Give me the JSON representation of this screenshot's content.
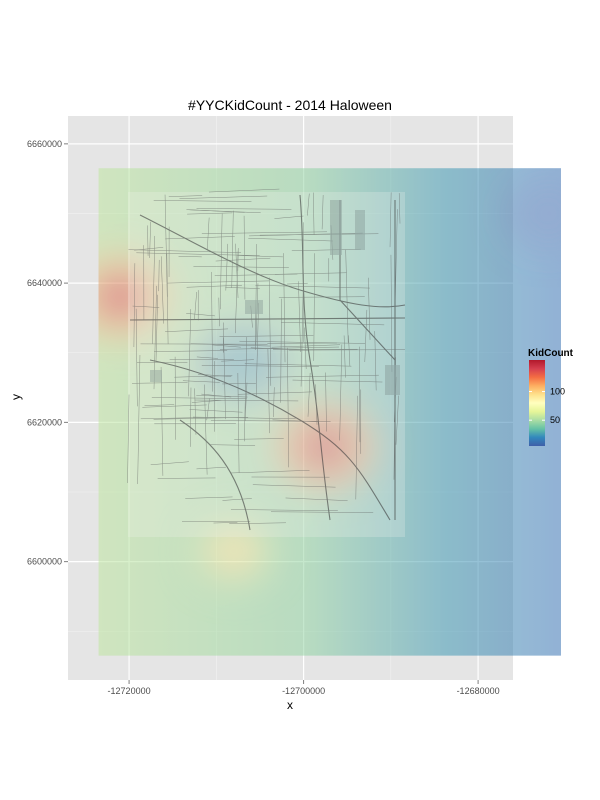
{
  "chart_data": {
    "type": "heatmap",
    "title": "#YYCKidCount - 2014 Haloween",
    "xlabel": "x",
    "ylabel": "y",
    "xlim": [
      -12727000,
      -12676000
    ],
    "ylim": [
      6583000,
      6664000
    ],
    "data_extent": {
      "x": [
        -12723500,
        -12670500
      ],
      "y": [
        6586500,
        6656500
      ]
    },
    "x_ticks": [
      {
        "value": -12720000,
        "label": "-12720000"
      },
      {
        "value": -12700000,
        "label": "-12700000"
      },
      {
        "value": -12680000,
        "label": "-12680000"
      }
    ],
    "y_ticks": [
      {
        "value": 6660000,
        "label": "6660000"
      },
      {
        "value": 6640000,
        "label": "6640000"
      },
      {
        "value": 6620000,
        "label": "6620000"
      },
      {
        "value": 6600000,
        "label": "6600000"
      }
    ],
    "grid": true,
    "background": "#e5e5e5",
    "hotspots": [
      {
        "x": -12697500,
        "y": 6616500,
        "kidcount": 150
      },
      {
        "x": -12721000,
        "y": 6638000,
        "kidcount": 140
      },
      {
        "x": -12708000,
        "y": 6601500,
        "kidcount": 95
      },
      {
        "x": -12707000,
        "y": 6628500,
        "kidcount": 30
      },
      {
        "x": -12672000,
        "y": 6650000,
        "kidcount": 10
      }
    ],
    "legend": {
      "title": "KidCount",
      "position": "right",
      "range": [
        5,
        155
      ],
      "ticks": [
        {
          "value": 50,
          "label": "50"
        },
        {
          "value": 100,
          "label": "100"
        }
      ],
      "palette": [
        "#3f5fa8",
        "#3288bd",
        "#66c2a5",
        "#abdda4",
        "#e6f598",
        "#ffffbf",
        "#fee08b",
        "#fdae61",
        "#f46d43",
        "#d53e4f",
        "#b2182b"
      ]
    },
    "basemap": {
      "description_icon": "city-street-map"
    }
  }
}
